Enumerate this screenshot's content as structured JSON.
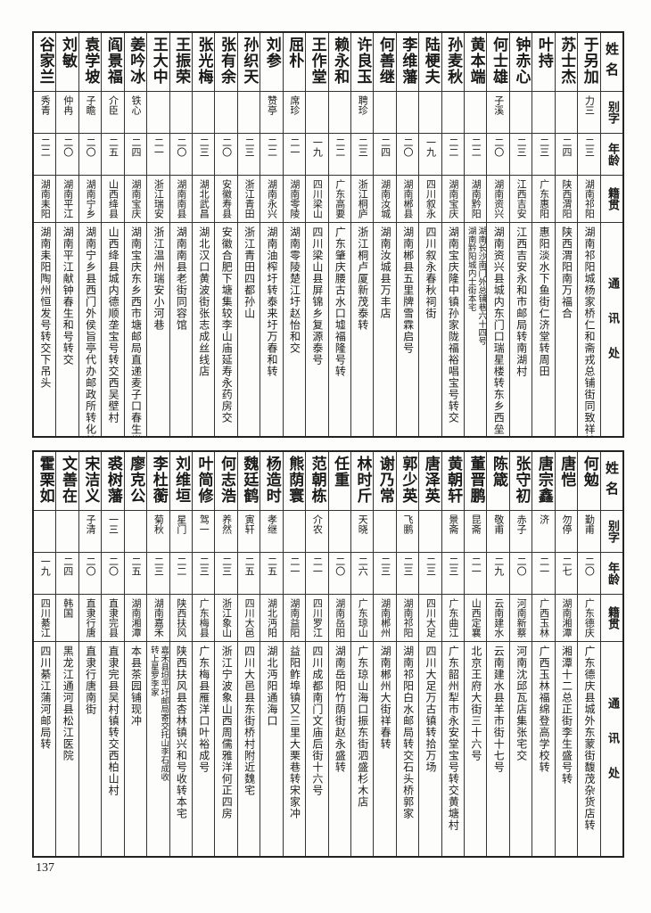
{
  "headers": {
    "name": "姓名",
    "alias": "别字",
    "age": "年龄",
    "native": "籍贯",
    "address": "通讯处"
  },
  "top_table": {
    "rows": [
      {
        "name": "于另加",
        "alias": "力三",
        "age": "二三",
        "native": "湖南祁阳",
        "address": [
          "湖南祁阳城杨家桥仁和斋戎总铺街同致祥转"
        ]
      },
      {
        "name": "苏士杰",
        "alias": "",
        "age": "二四",
        "native": "陕西渭阳",
        "address": [
          "陕西渭阳南万福合"
        ]
      },
      {
        "name": "叶持",
        "alias": "",
        "age": "二三",
        "native": "广东惠阳",
        "address": [
          "惠阳淡水下鱼街仁济堂转周田"
        ]
      },
      {
        "name": "钟赤心",
        "alias": "",
        "age": "二三",
        "native": "江西吉安",
        "address": [
          "江西吉安永和市邮局转南湖村"
        ]
      },
      {
        "name": "何士雄",
        "alias": "子溪",
        "age": "二〇",
        "native": "湖南资兴",
        "address": [
          "湖南资兴县城内东门口瑞星楼转东乡西垒"
        ]
      },
      {
        "name": "黄本端",
        "alias": "",
        "age": "二二",
        "native": "湖南黔阳",
        "address": [
          "湖南长沙南门外总铺巷六十四号",
          "湖南黔阳城内士街本宅"
        ]
      },
      {
        "name": "孙麦秋",
        "alias": "",
        "age": "二二",
        "native": "湖南宝庆",
        "address": [
          "湖南宝庆隆中镇孙家陇福裕唱宝号转交"
        ]
      },
      {
        "name": "陆梗夫",
        "alias": "",
        "age": "一九",
        "native": "四川叙永",
        "address": [
          "四川叙永春秋祠街"
        ]
      },
      {
        "name": "李维藩",
        "alias": "",
        "age": "二〇",
        "native": "湖南郴县",
        "address": [
          "湖南郴县五里牌雪霖启号"
        ]
      },
      {
        "name": "何善继",
        "alias": "",
        "age": "二四",
        "native": "湖南汝城",
        "address": [
          "湖南汝城县万丰店"
        ]
      },
      {
        "name": "许良玉",
        "alias": "聘珍",
        "age": "二三",
        "native": "浙江桐庐",
        "address": [
          "浙江桐卢厦新茂泰转"
        ]
      },
      {
        "name": "赖永和",
        "alias": "",
        "age": "二二",
        "native": "广东高要",
        "address": [
          "广东肇庆腰古水口墟福隆号转"
        ]
      },
      {
        "name": "王作堂",
        "alias": "",
        "age": "一九",
        "native": "四川梁山",
        "address": [
          "四川梁山县屏锦乡复源泰号"
        ]
      },
      {
        "name": "屈朴",
        "alias": "席珍",
        "age": "二一",
        "native": "湖南零陵",
        "address": [
          "湖南零陵楚江圩赵怡和交"
        ]
      },
      {
        "name": "刘参",
        "alias": "赞亭",
        "age": "二二",
        "native": "湖南永兴",
        "address": [
          "湖南油榨圩转泰来圩万春和转"
        ]
      },
      {
        "name": "孙织天",
        "alias": "",
        "age": "二三",
        "native": "浙江青田",
        "address": [
          "浙江青田四都孙山"
        ]
      },
      {
        "name": "张有余",
        "alias": "",
        "age": "二〇",
        "native": "安徽寿县",
        "address": [
          "安徽合肥下塘集较李山庙延寿永药房交"
        ]
      },
      {
        "name": "张光梅",
        "alias": "",
        "age": "二三",
        "native": "湖北武昌",
        "address": [
          "湖北汉口黄波街张志成丝线店"
        ]
      },
      {
        "name": "王振荣",
        "alias": "",
        "age": "二〇",
        "native": "湖南南县",
        "address": [
          "湖南南县老街同容馆"
        ]
      },
      {
        "name": "王大中",
        "alias": "",
        "age": "二一",
        "native": "浙江瑞安",
        "address": [
          "浙江温州瑞安小河巷"
        ]
      },
      {
        "name": "姜吟冰",
        "alias": "铁心",
        "age": "二四",
        "native": "湖南宝庆",
        "address": [
          "湖南宝庆东乡西市塘邮局直递麦子口春生堂"
        ]
      },
      {
        "name": "阎景福",
        "alias": "介臣",
        "age": "二五",
        "native": "山西绛县",
        "address": [
          "山西绛县城内德顺垄宝号转交西吴壁村"
        ]
      },
      {
        "name": "袁学坡",
        "alias": "子瞻",
        "age": "二〇",
        "native": "湖南宁乡",
        "address": [
          "湖南宁乡县西门外侯旨亭代办邮政所转化蛟湖"
        ]
      },
      {
        "name": "刘敏",
        "alias": "仲冉",
        "age": "二〇",
        "native": "湖南平江",
        "address": [
          "湖南平江献钟春生和号转交"
        ]
      },
      {
        "name": "谷家兰",
        "alias": "秀青",
        "age": "二二",
        "native": "湖南耒阳",
        "address": [
          "湖南耒阳陶州恒发号转交下吊头"
        ]
      }
    ]
  },
  "bottom_table": {
    "rows": [
      {
        "name": "何勉",
        "alias": "勤甫",
        "age": "二〇",
        "native": "广东德庆",
        "address": [
          "广东德庆县城外东蒙街馥茂杂货店转"
        ]
      },
      {
        "name": "唐恺",
        "alias": "勿停",
        "age": "二七",
        "native": "湖南湘潭",
        "address": [
          "湘潭十二总正街李生盛号转"
        ]
      },
      {
        "name": "唐宗鑫",
        "alias": "济",
        "age": "二一",
        "native": "广西玉林",
        "address": [
          "广西玉林福绵登高学校转"
        ]
      },
      {
        "name": "张守初",
        "alias": "赤子",
        "age": "二〇",
        "native": "河南新蔡",
        "address": [
          "河南沈邱瓦店集张宅交"
        ]
      },
      {
        "name": "陈箴",
        "alias": "敬甫",
        "age": "二九",
        "native": "云南建水",
        "address": [
          "云南建水县羊市街十七号"
        ]
      },
      {
        "name": "董晋鹏",
        "alias": "昆斋",
        "age": "二一",
        "native": "山西定襄",
        "address": [
          "北京王府大街三十六号"
        ]
      },
      {
        "name": "黄朝轩",
        "alias": "景斋",
        "age": "二三",
        "native": "广东曲江",
        "address": [
          "广东韶州犁市永安堂宝号转交黄塘村"
        ]
      },
      {
        "name": "唐泽英",
        "alias": "",
        "age": "二三",
        "native": "四川大足",
        "address": [
          "四川大足万古镇转拾万场"
        ]
      },
      {
        "name": "郭少英",
        "alias": "飞鹏",
        "age": "二三",
        "native": "湖南祁阳",
        "address": [
          "湖南祁阳白水邮局转交石头桥郭家"
        ]
      },
      {
        "name": "谢乃常",
        "alias": "",
        "age": "二三",
        "native": "湖南郴州",
        "address": [
          "湖南郴州大街祥春转"
        ]
      },
      {
        "name": "林时斤",
        "alias": "天晓",
        "age": "二六",
        "native": "广东琼山",
        "address": [
          "广东琼山海口振东街泗盛杉木店"
        ]
      },
      {
        "name": "任重",
        "alias": "",
        "age": "二〇",
        "native": "湖南岳阳",
        "address": [
          "湖南岳阳竹荫街赵永盛转"
        ]
      },
      {
        "name": "范朝栋",
        "alias": "介农",
        "age": "二一",
        "native": "四川罗江",
        "address": [
          "四川成都南门文庙后街十六号"
        ]
      },
      {
        "name": "熊荫寰",
        "alias": "",
        "age": "二一",
        "native": "湖南益阳",
        "address": [
          "益阳鲊埠镇又三里大栗巷转宋家冲"
        ]
      },
      {
        "name": "杨造时",
        "alias": "孝继",
        "age": "二五",
        "native": "湖北沔阳",
        "address": [
          "湖北沔阳通海口"
        ]
      },
      {
        "name": "魏廷鹤",
        "alias": "寅轩",
        "age": "二五",
        "native": "四川大邑",
        "address": [
          "四川大邑县东街桥村附近魏宅"
        ]
      },
      {
        "name": "何志浩",
        "alias": "养然",
        "age": "二三",
        "native": "浙江象山",
        "address": [
          "浙江宁波象山西周儒雅洋何正四房"
        ]
      },
      {
        "name": "叶简修",
        "alias": "驾一",
        "age": "二三",
        "native": "广东梅县",
        "address": [
          "广东梅县雁洋口叶裕成号"
        ]
      },
      {
        "name": "刘维垣",
        "alias": "星门",
        "age": "二二",
        "native": "陕西扶风",
        "address": [
          "陕西扶风县杏林镇兴和号收转本宅"
        ]
      },
      {
        "name": "李杜蘅",
        "alias": "菊秋",
        "age": "二三",
        "native": "湖南嘉禾",
        "address": [
          "嘉禾县坦平圩邮局寄交托山李石成收",
          "转上星罗李家"
        ]
      },
      {
        "name": "廖克公",
        "alias": "",
        "age": "二五",
        "native": "湖南湘潭",
        "address": [
          "本县茶园铺现冲"
        ]
      },
      {
        "name": "裘树藩",
        "alias": "一三",
        "age": "二〇",
        "native": "直隶完县",
        "address": [
          "直隶完县吴村镇转交西柏山村"
        ]
      },
      {
        "name": "宋洁义",
        "alias": "子清",
        "age": "二〇",
        "native": "直隶行唐",
        "address": [
          "直隶行唐南街"
        ]
      },
      {
        "name": "文善在",
        "alias": "",
        "age": "二四",
        "native": "韩国",
        "address": [
          "黑龙江通河县松江医院"
        ]
      },
      {
        "name": "霍栗如",
        "alias": "",
        "age": "一九",
        "native": "四川綦江",
        "address": [
          "四川綦江蒲河邮局转"
        ]
      }
    ]
  },
  "page_number": "137"
}
